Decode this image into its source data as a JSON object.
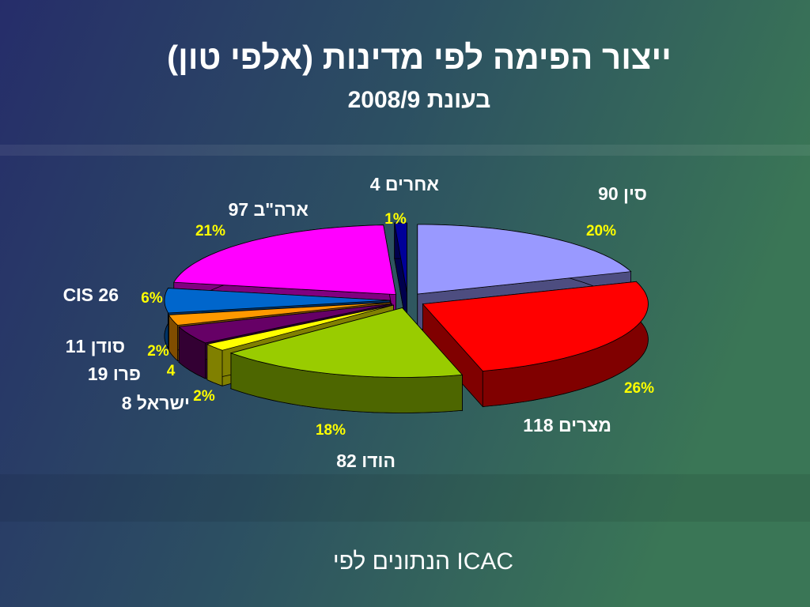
{
  "chart_data": {
    "type": "pie3d",
    "title": "ייצור הפימה לפי מדינות (אלפי טון)",
    "subtitle": "בעונת 2008/9",
    "categories": [
      "סין",
      "מצרים",
      "הודו",
      "ישראל",
      "פרו",
      "סודן",
      "CIS",
      "ארה\"ב",
      "אחרים"
    ],
    "values": [
      90,
      118,
      82,
      8,
      19,
      11,
      26,
      97,
      4
    ],
    "percent_labels": [
      "20%",
      "26%",
      "18%",
      "2%",
      "4",
      "2%",
      "6%",
      "21%",
      "1%"
    ],
    "colors": [
      "#9999ff",
      "#ff0000",
      "#99cc00",
      "#ffff00",
      "#660066",
      "#ff9900",
      "#0066cc",
      "#ff00ff",
      "#000099"
    ],
    "source": "הנתונים לפי ICAC"
  }
}
